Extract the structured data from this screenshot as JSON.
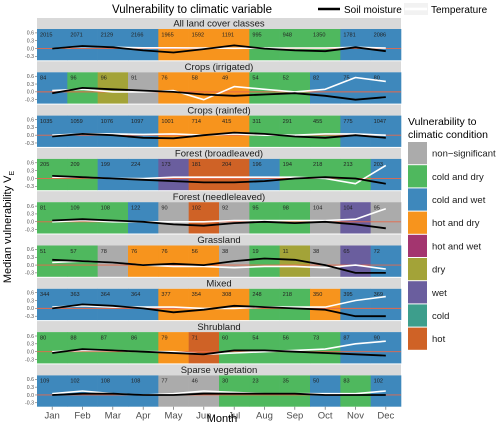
{
  "chart_data": {
    "type": "heatmap",
    "title": "",
    "xlabel": "Month",
    "ylabel": "Median vulnerability V",
    "ylabel_subscript": "E",
    "x": [
      "Jan",
      "Feb",
      "Mar",
      "Apr",
      "May",
      "Jun",
      "Jul",
      "Aug",
      "Sep",
      "Oct",
      "Nov",
      "Dec"
    ],
    "ylim": [
      -0.45,
      0.75
    ],
    "y_ticks": [
      "0.6",
      "0.3",
      "0.0",
      "-0.3"
    ],
    "y_tick_values": [
      0.6,
      0.3,
      0.0,
      -0.3
    ],
    "reference_line": 0,
    "line_legend": {
      "title": "Vulnerability to climatic variable",
      "items": [
        {
          "name": "Soil moisture",
          "color": "#000000"
        },
        {
          "name": "Temperature",
          "color": "#ffffff"
        }
      ]
    },
    "fill_legend": {
      "title": "Vulnerability to\nclimatic condition",
      "items": [
        {
          "name": "non−significant",
          "color": "#ababab"
        },
        {
          "name": "cold and dry",
          "color": "#4fb85e"
        },
        {
          "name": "cold and wet",
          "color": "#3e88bc"
        },
        {
          "name": "hot and dry",
          "color": "#f7941d"
        },
        {
          "name": "hot and wet",
          "color": "#a3356f"
        },
        {
          "name": "dry",
          "color": "#a3a338"
        },
        {
          "name": "wet",
          "color": "#6a5e9e"
        },
        {
          "name": "cold",
          "color": "#3d9e8c"
        },
        {
          "name": "hot",
          "color": "#cf6226"
        }
      ]
    },
    "panels": [
      {
        "name": "All land cover classes",
        "conditions": [
          "cold and wet",
          "cold and wet",
          "cold and wet",
          "cold and wet",
          "hot and dry",
          "hot and dry",
          "hot and dry",
          "cold and dry",
          "cold and dry",
          "cold and dry",
          "cold and wet",
          "cold and wet"
        ],
        "counts": [
          "2015",
          "2071",
          "2129",
          "2166",
          "1965",
          "1592",
          "1191",
          "995",
          "948",
          "1350",
          "1781",
          "2086"
        ],
        "soil": [
          0.0,
          0.1,
          0.05,
          -0.07,
          -0.15,
          -0.02,
          0.12,
          0.0,
          -0.07,
          -0.1,
          0.05,
          -0.1
        ],
        "temp": [
          0.0,
          0.08,
          0.05,
          0.03,
          0.03,
          0.02,
          0.01,
          0.02,
          0.02,
          0.02,
          0.05,
          0.02
        ]
      },
      {
        "name": "Crops (irrigated)",
        "conditions": [
          "cold and wet",
          "cold and dry",
          "dry",
          "non-significant",
          "hot and dry",
          "hot and dry",
          "hot and dry",
          "cold and dry",
          "cold and dry",
          "cold and wet",
          "cold and wet",
          "cold and wet"
        ],
        "counts": [
          "84",
          "96",
          "96",
          "91",
          "76",
          "58",
          "49",
          "54",
          "52",
          "82",
          "75",
          "80"
        ],
        "soil": [
          -0.05,
          0.15,
          0.1,
          0.05,
          0.0,
          -0.1,
          -0.15,
          -0.1,
          -0.05,
          -0.15,
          -0.3,
          -0.2
        ],
        "temp": [
          0.05,
          0.1,
          0.0,
          0.0,
          0.05,
          -0.3,
          0.2,
          0.1,
          0.0,
          0.1,
          0.55,
          0.4
        ]
      },
      {
        "name": "Crops (rainfed)",
        "conditions": [
          "cold and wet",
          "cold and wet",
          "cold and wet",
          "cold and wet",
          "hot and dry",
          "hot and dry",
          "hot and dry",
          "cold and dry",
          "cold and dry",
          "cold and dry",
          "cold and wet",
          "cold and wet"
        ],
        "counts": [
          "1035",
          "1059",
          "1076",
          "1097",
          "1001",
          "714",
          "415",
          "311",
          "291",
          "455",
          "775",
          "1047"
        ],
        "soil": [
          -0.05,
          0.05,
          0.0,
          -0.1,
          -0.12,
          0.0,
          0.1,
          0.05,
          -0.05,
          -0.1,
          0.0,
          -0.1
        ],
        "temp": [
          0.0,
          0.05,
          0.05,
          0.03,
          0.05,
          0.0,
          0.05,
          0.0,
          0.0,
          0.05,
          0.05,
          0.0
        ]
      },
      {
        "name": "Forest (broadleaved)",
        "conditions": [
          "cold and dry",
          "cold and dry",
          "cold and wet",
          "cold and wet",
          "wet",
          "hot",
          "hot",
          "cold and wet",
          "cold and dry",
          "cold and dry",
          "cold and dry",
          "cold and wet"
        ],
        "counts": [
          "205",
          "209",
          "199",
          "224",
          "173",
          "181",
          "204",
          "196",
          "194",
          "218",
          "213",
          "203"
        ],
        "soil": [
          0.1,
          0.05,
          0.0,
          -0.05,
          -0.1,
          -0.15,
          -0.15,
          -0.1,
          0.0,
          0.05,
          0.0,
          -0.2
        ],
        "temp": [
          0.05,
          0.05,
          0.0,
          0.0,
          0.05,
          0.05,
          0.05,
          0.05,
          0.05,
          0.0,
          -0.2,
          0.5
        ]
      },
      {
        "name": "Forest (needleleaved)",
        "conditions": [
          "cold and dry",
          "cold and dry",
          "cold and dry",
          "cold and wet",
          "non-significant",
          "hot",
          "non-significant",
          "cold and dry",
          "cold and dry",
          "non-significant",
          "wet",
          "non-significant"
        ],
        "counts": [
          "81",
          "109",
          "108",
          "122",
          "90",
          "102",
          "92",
          "95",
          "98",
          "104",
          "104",
          "95"
        ],
        "soil": [
          0.05,
          0.1,
          0.05,
          0.0,
          -0.1,
          -0.15,
          -0.05,
          0.0,
          -0.05,
          0.0,
          -0.1,
          -0.25
        ],
        "temp": [
          0.0,
          0.05,
          0.0,
          0.0,
          0.0,
          0.0,
          0.05,
          0.05,
          0.05,
          0.05,
          0.1,
          0.5
        ]
      },
      {
        "name": "Grassland",
        "conditions": [
          "cold and dry",
          "cold and dry",
          "non-significant",
          "hot and dry",
          "hot and dry",
          "hot and dry",
          "non-significant",
          "cold and dry",
          "dry",
          "non-significant",
          "wet",
          "cold and wet"
        ],
        "counts": [
          "51",
          "57",
          "78",
          "76",
          "76",
          "56",
          "38",
          "19",
          "11",
          "38",
          "65",
          "72"
        ],
        "soil": [
          0.2,
          0.15,
          0.1,
          0.0,
          0.05,
          0.0,
          0.15,
          0.25,
          0.2,
          0.0,
          -0.3,
          -0.3
        ],
        "temp": [
          0.1,
          0.15,
          0.1,
          0.0,
          -0.05,
          -0.05,
          -0.1,
          -0.05,
          -0.05,
          -0.1,
          0.0,
          -0.15
        ]
      },
      {
        "name": "Mixed",
        "conditions": [
          "cold and wet",
          "cold and wet",
          "cold and wet",
          "cold and wet",
          "hot and dry",
          "hot and dry",
          "hot and dry",
          "cold and dry",
          "cold and dry",
          "hot and dry",
          "cold and wet",
          "cold and wet"
        ],
        "counts": [
          "344",
          "363",
          "364",
          "364",
          "377",
          "354",
          "308",
          "248",
          "218",
          "350",
          "395",
          "369"
        ],
        "soil": [
          0.0,
          0.15,
          0.1,
          0.0,
          -0.15,
          -0.05,
          0.1,
          0.05,
          0.0,
          -0.05,
          -0.3,
          -0.3
        ],
        "temp": [
          0.05,
          0.1,
          0.05,
          0.05,
          0.05,
          0.0,
          0.0,
          0.05,
          0.05,
          0.05,
          0.3,
          0.45
        ]
      },
      {
        "name": "Shrubland",
        "conditions": [
          "cold and dry",
          "cold and dry",
          "cold and dry",
          "cold and dry",
          "hot and dry",
          "hot",
          "cold and dry",
          "cold and dry",
          "cold and dry",
          "cold and dry",
          "cold and wet",
          "cold and wet"
        ],
        "counts": [
          "80",
          "88",
          "87",
          "86",
          "79",
          "71",
          "60",
          "54",
          "56",
          "73",
          "87",
          "90"
        ],
        "soil": [
          -0.05,
          0.1,
          0.05,
          0.0,
          -0.05,
          -0.1,
          0.05,
          0.05,
          0.0,
          -0.05,
          -0.1,
          -0.15
        ],
        "temp": [
          0.0,
          0.05,
          0.05,
          0.0,
          0.0,
          -0.1,
          -0.05,
          0.0,
          0.05,
          0.1,
          0.3,
          0.4
        ]
      },
      {
        "name": "Sparse vegetation",
        "conditions": [
          "cold and wet",
          "cold and wet",
          "cold and wet",
          "cold and wet",
          "non-significant",
          "non-significant",
          "cold and dry",
          "cold and dry",
          "cold and dry",
          "cold and wet",
          "cold and dry",
          "cold and wet"
        ],
        "counts": [
          "109",
          "102",
          "108",
          "108",
          "77",
          "46",
          "30",
          "23",
          "35",
          "50",
          "83",
          "102"
        ],
        "soil": [
          0.0,
          0.05,
          0.05,
          0.0,
          0.0,
          0.05,
          0.05,
          0.05,
          0.05,
          0.0,
          0.0,
          0.0
        ],
        "temp": [
          0.05,
          0.15,
          0.05,
          0.0,
          0.05,
          0.15,
          0.1,
          0.05,
          0.05,
          0.05,
          0.05,
          0.15
        ]
      }
    ]
  }
}
